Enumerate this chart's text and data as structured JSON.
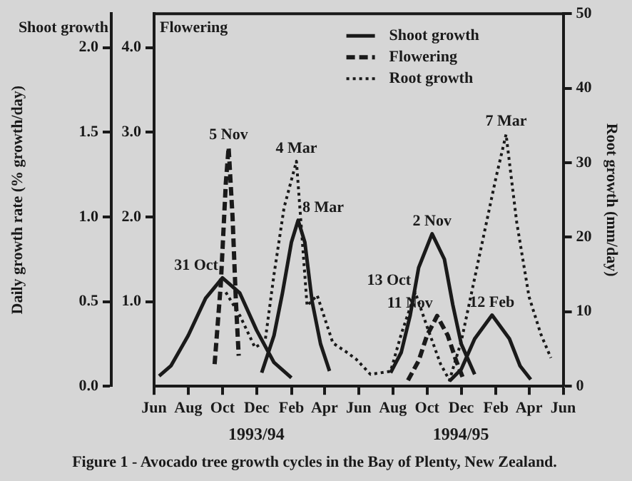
{
  "chart_data": {
    "type": "line",
    "title": "Figure 1 - Avocado tree growth cycles in the Bay of Plenty, New Zealand.",
    "ylabel": "Daily growth rate (% growth/day)",
    "y2label": "Flowering",
    "y3label": "Root growth (mm/day)",
    "xlim": [
      "1993-06",
      "1995-06"
    ],
    "xticks": [
      {
        "value": "1993-06",
        "label": "Jun"
      },
      {
        "value": "1993-08",
        "label": "Aug"
      },
      {
        "value": "1993-10",
        "label": "Oct"
      },
      {
        "value": "1993-12",
        "label": "Dec"
      },
      {
        "value": "1994-02",
        "label": "Feb"
      },
      {
        "value": "1994-04",
        "label": "Apr"
      },
      {
        "value": "1994-06",
        "label": "Jun"
      },
      {
        "value": "1994-08",
        "label": "Aug"
      },
      {
        "value": "1994-10",
        "label": "Oct"
      },
      {
        "value": "1994-12",
        "label": "Dec"
      },
      {
        "value": "1995-02",
        "label": "Feb"
      },
      {
        "value": "1995-04",
        "label": "Apr"
      },
      {
        "value": "1995-06",
        "label": "Jun"
      }
    ],
    "ylim": [
      0,
      2.2
    ],
    "yticks": [
      {
        "value": 0,
        "label": "0.0"
      },
      0.5,
      {
        "value": 1,
        "label": "1.0"
      },
      1.5,
      {
        "value": 2,
        "label": "2.0"
      }
    ],
    "y2lim": [
      0,
      4.4
    ],
    "y2ticks": [
      {
        "value": 1,
        "label": "1.0"
      },
      {
        "value": 2,
        "label": "2.0"
      },
      {
        "value": 3,
        "label": "3.0"
      },
      {
        "value": 4,
        "label": "4.0"
      }
    ],
    "y3lim": [
      0,
      50
    ],
    "y3ticks": [
      0,
      10,
      20,
      30,
      40,
      50
    ],
    "grid": false,
    "legend": "top right",
    "marker": "none",
    "series": [
      {
        "name": "Shoot growth",
        "color": "#1a1a1a",
        "line_style": "solid",
        "x": [
          "1993-06-10",
          "1993-07-01",
          "1993-08-01",
          "1993-09-01",
          "1993-10-01",
          "1993-11-01",
          "1993-12-01",
          "1994-01-01",
          "1994-02-01",
          null,
          "1993-12-10",
          "1994-01-01",
          "1994-01-16",
          "1994-02-01",
          "1994-02-13",
          "1994-02-25",
          "1994-03-10",
          "1994-03-25",
          "1994-04-10",
          null,
          "1994-07-28",
          "1994-08-16",
          "1994-09-01",
          "1994-09-16",
          "1994-10-10",
          "1994-11-01",
          "1994-11-16",
          "1994-12-01",
          "1994-12-25",
          null,
          "1994-11-10",
          "1994-12-01",
          "1994-12-25",
          "1995-01-25",
          "1995-02-25",
          "1995-03-16",
          "1995-04-04"
        ],
        "values": [
          0.06,
          0.12,
          0.3,
          0.52,
          0.64,
          0.55,
          0.33,
          0.14,
          0.05,
          null,
          0.08,
          0.3,
          0.55,
          0.85,
          0.98,
          0.85,
          0.5,
          0.25,
          0.09,
          null,
          0.08,
          0.2,
          0.42,
          0.7,
          0.9,
          0.75,
          0.48,
          0.25,
          0.07,
          null,
          0.03,
          0.1,
          0.28,
          0.42,
          0.28,
          0.12,
          0.04
        ]
      },
      {
        "name": "Flowering",
        "color": "#1a1a1a",
        "line_style": "dashed",
        "axis": "y2",
        "x": [
          "1993-09-17",
          "1993-09-28",
          "1993-10-07",
          "1993-10-12",
          "1993-10-19",
          "1993-10-25",
          "1993-10-30",
          null,
          "1994-08-28",
          "1994-09-16",
          "1994-10-01",
          "1994-10-19",
          "1994-11-07",
          "1994-11-22",
          "1994-12-04"
        ],
        "values": [
          0.26,
          1.2,
          2.4,
          2.82,
          2.0,
          1.0,
          0.36,
          null,
          0.07,
          0.3,
          0.6,
          0.83,
          0.6,
          0.3,
          0.1
        ]
      },
      {
        "name": "Root growth",
        "color": "#1a1a1a",
        "line_style": "dotted",
        "axis": "y3",
        "x": [
          "1993-10-07",
          "1993-11-01",
          "1993-11-28",
          "1993-12-16",
          "1994-01-01",
          "1994-01-19",
          "1994-02-10",
          "1994-03-01",
          "1994-03-19",
          "1994-04-16",
          "1994-05-10",
          "1994-05-28",
          "1994-06-22",
          "1994-07-28",
          "1994-08-16",
          "1994-09-10",
          "1994-10-01",
          "1994-10-25",
          "1994-11-10",
          "1994-12-01",
          "1995-01-01",
          "1995-02-01",
          "1995-02-19",
          "1995-03-10",
          "1995-04-01",
          "1995-04-22",
          "1995-05-10"
        ],
        "values": [
          12.6,
          9.5,
          5.2,
          6,
          15,
          24,
          30.2,
          10.8,
          12.2,
          5.8,
          4.6,
          3.6,
          1.6,
          2,
          7,
          12.6,
          8,
          3,
          0.8,
          6,
          17,
          28,
          33.8,
          22,
          12,
          7,
          3.8
        ]
      }
    ],
    "annotations": [
      "Shoot growth",
      "1993/94",
      "1994/95",
      {
        "text": "31 Oct",
        "x": "1993-10-01",
        "y": 0.64
      },
      {
        "text": "5 Nov",
        "x": "1993-10-12",
        "y": 1.41
      },
      {
        "text": "4 Mar",
        "x": "1994-02-10",
        "y": 1.33
      },
      {
        "text": "8 Mar",
        "x": "1994-02-13",
        "y": 0.98
      },
      {
        "text": "2 Nov",
        "x": "1994-10-10",
        "y": 0.9
      },
      {
        "text": "13 Oct",
        "x": "1994-09-10",
        "y": 0.55
      },
      {
        "text": "11 Nov",
        "x": "1994-10-19",
        "y": 0.415
      },
      {
        "text": "12 Feb",
        "x": "1995-01-25",
        "y": 0.42
      },
      {
        "text": "7 Mar",
        "x": "1995-02-19",
        "y": 1.49
      }
    ]
  }
}
